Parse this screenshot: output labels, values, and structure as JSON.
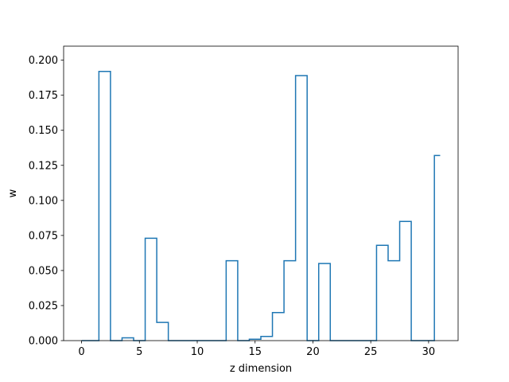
{
  "chart_data": {
    "type": "line",
    "drawstyle": "steps-mid",
    "xlabel": "z dimension",
    "ylabel": "w",
    "xlim": [
      -1.55,
      32.55
    ],
    "ylim": [
      0,
      0.21
    ],
    "xticks": [
      0,
      5,
      10,
      15,
      20,
      25,
      30
    ],
    "yticks": [
      0.0,
      0.025,
      0.05,
      0.075,
      0.1,
      0.125,
      0.15,
      0.175,
      0.2
    ],
    "ytick_labels": [
      "0.000",
      "0.025",
      "0.050",
      "0.075",
      "0.100",
      "0.125",
      "0.150",
      "0.175",
      "0.200"
    ],
    "x": [
      0,
      1,
      2,
      3,
      4,
      5,
      6,
      7,
      8,
      9,
      10,
      11,
      12,
      13,
      14,
      15,
      16,
      17,
      18,
      19,
      20,
      21,
      22,
      23,
      24,
      25,
      26,
      27,
      28,
      29,
      30,
      31
    ],
    "values": [
      0.0,
      0.0,
      0.192,
      0.0,
      0.002,
      0.0,
      0.073,
      0.013,
      0.0,
      0.0,
      0.0,
      0.0,
      0.0,
      0.057,
      0.0,
      0.001,
      0.003,
      0.02,
      0.057,
      0.189,
      0.0,
      0.055,
      0.0,
      0.0,
      0.0,
      0.0,
      0.068,
      0.057,
      0.085,
      0.0,
      0.0,
      0.132
    ],
    "line_color": "#1f77b4",
    "grid": false
  }
}
